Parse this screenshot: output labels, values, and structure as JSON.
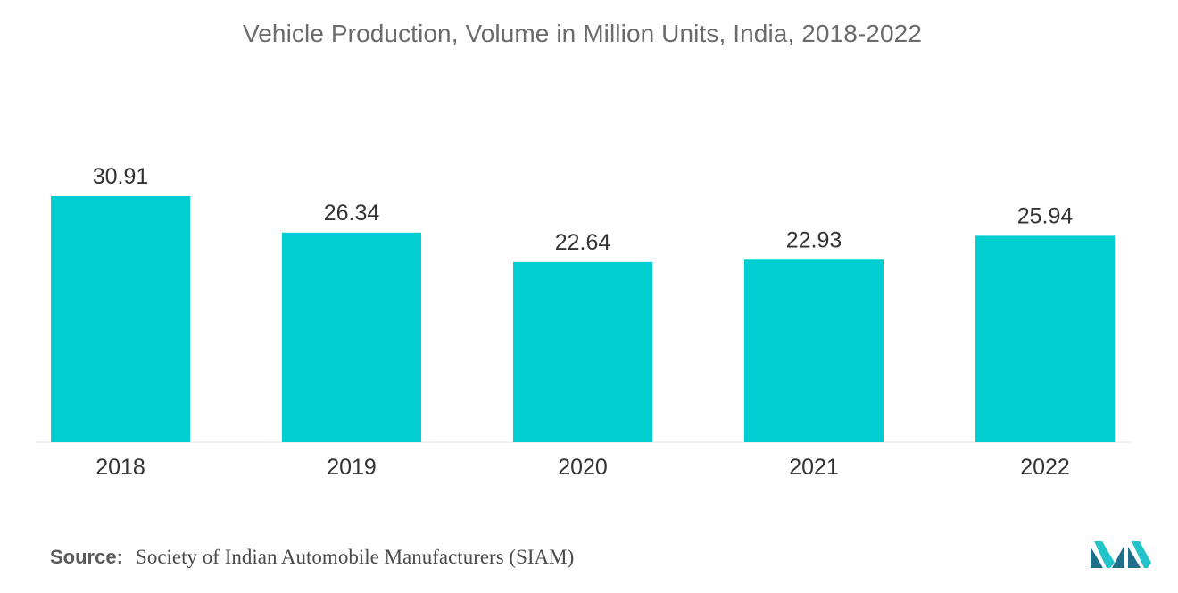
{
  "chart_data": {
    "type": "bar",
    "title": "Vehicle Production, Volume in Million Units, India, 2018-2022",
    "categories": [
      "2018",
      "2019",
      "2020",
      "2021",
      "2022"
    ],
    "values": [
      30.91,
      26.34,
      22.64,
      22.93,
      25.94
    ],
    "value_labels": [
      "30.91",
      "26.34",
      "22.64",
      "22.93",
      "25.94"
    ],
    "xlabel": "",
    "ylabel": "",
    "ylim": [
      0,
      30.91
    ],
    "grid": false,
    "legend": "none",
    "bar_color": "#00ced1"
  },
  "source": {
    "label": "Source:",
    "text": "Society of Indian Automobile Manufacturers (SIAM)"
  },
  "colors": {
    "bar": "#00ced1",
    "axis": "#d9d9d9",
    "label_text": "#333333",
    "title_text": "#6b6b6b",
    "logo_dark": "#1f6f8b",
    "logo_light": "#22c4c9"
  }
}
